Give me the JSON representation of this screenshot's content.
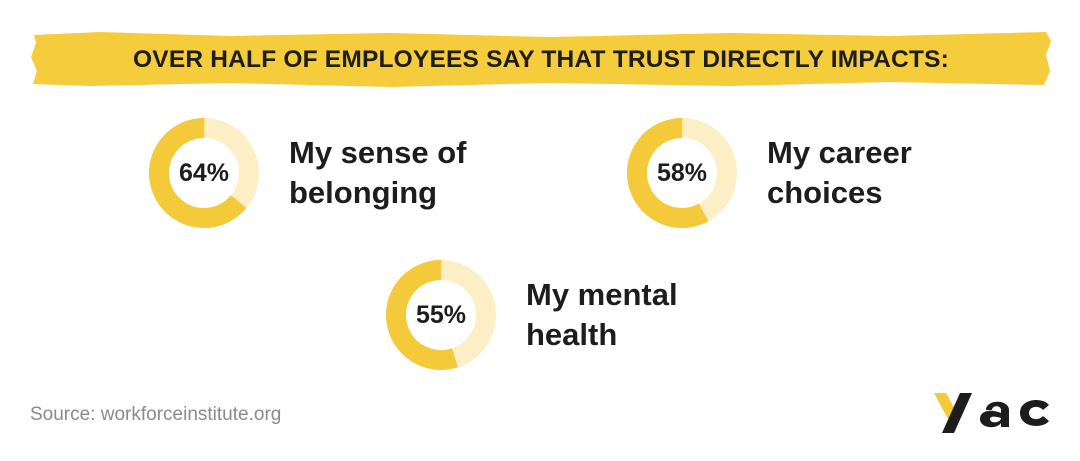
{
  "chart_data": {
    "type": "pie",
    "title": "OVER HALF OF EMPLOYEES SAY THAT TRUST DIRECTLY IMPACTS:",
    "categories": [
      "My sense of belonging",
      "My career choices",
      "My mental health"
    ],
    "items": [
      {
        "value": 64,
        "value_label": "64%",
        "line1": "My sense of",
        "line2": "belonging"
      },
      {
        "value": 58,
        "value_label": "58%",
        "line1": "My career",
        "line2": "choices"
      },
      {
        "value": 55,
        "value_label": "55%",
        "line1": "My mental",
        "line2": "health"
      }
    ]
  },
  "footer": {
    "source": "Source: workforceinstitute.org"
  },
  "brand": {
    "logo_text": "yac"
  },
  "colors": {
    "accent": "#F4C93A",
    "track": "#FCEFC5",
    "banner": "#F4CC3C",
    "text": "#1d1d1d",
    "muted": "#8a8a8a"
  }
}
